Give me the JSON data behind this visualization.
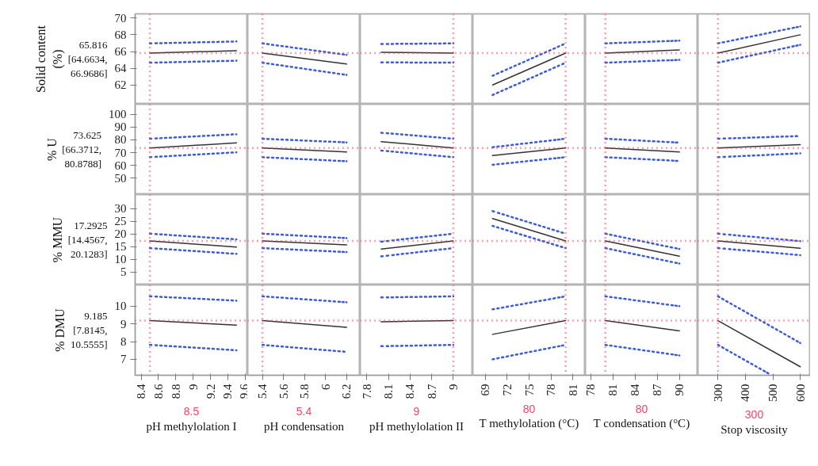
{
  "chart_data": [
    {
      "type": "line",
      "ylabel": "Solid content (%)",
      "annotations": [
        "65.816 [64.6634, 66.9686]"
      ],
      "xlim": [
        8.33,
        9.63
      ],
      "xticks": [
        8.4,
        8.6,
        8.8,
        9,
        9.2,
        9.4,
        9.6
      ],
      "ylim": [
        59.7,
        70.5
      ],
      "yticks": [
        62,
        64,
        66,
        68,
        70
      ],
      "tick_labels": "y",
      "ref_lines": [
        {
          "axis": "x",
          "value": 8.5,
          "color": "#ff4060",
          "line_style": "dotted"
        },
        {
          "axis": "y",
          "value": 65.816,
          "color": "#ff4060",
          "line_style": "dotted"
        }
      ],
      "series": [
        {
          "color": "#333333",
          "line_style": "solid",
          "x": [
            8.5,
            9.5
          ],
          "values": [
            65.816,
            66.1
          ]
        },
        {
          "color": "#3b5bdb",
          "line_style": "dotted",
          "x": [
            8.5,
            9.5
          ],
          "values": [
            66.9686,
            67.2
          ]
        },
        {
          "color": "#3b5bdb",
          "line_style": "dotted",
          "x": [
            8.5,
            9.5
          ],
          "values": [
            64.6634,
            64.9
          ]
        }
      ]
    },
    {
      "type": "line",
      "xlim": [
        5.26,
        6.33
      ],
      "xticks": [
        5.4,
        5.6,
        5.8,
        6,
        6.2
      ],
      "ylim": [
        59.7,
        70.5
      ],
      "yticks": [
        62,
        64,
        66,
        68,
        70
      ],
      "tick_labels": false,
      "ref_lines": [
        {
          "axis": "x",
          "value": 5.4,
          "color": "#ff4060",
          "line_style": "dotted"
        },
        {
          "axis": "y",
          "value": 65.816,
          "color": "#ff4060",
          "line_style": "dotted"
        }
      ],
      "series": [
        {
          "color": "#333333",
          "line_style": "solid",
          "x": [
            5.4,
            6.2
          ],
          "values": [
            65.816,
            64.5
          ]
        },
        {
          "color": "#3b5bdb",
          "line_style": "dotted",
          "x": [
            5.4,
            6.2
          ],
          "values": [
            66.9686,
            65.6
          ]
        },
        {
          "color": "#3b5bdb",
          "line_style": "dotted",
          "x": [
            5.4,
            6.2
          ],
          "values": [
            64.6634,
            63.2
          ]
        }
      ]
    },
    {
      "type": "line",
      "xlim": [
        7.71,
        9.27
      ],
      "xticks": [
        7.8,
        8.1,
        8.4,
        8.7,
        9
      ],
      "ylim": [
        59.7,
        70.5
      ],
      "yticks": [
        62,
        64,
        66,
        68,
        70
      ],
      "tick_labels": false,
      "ref_lines": [
        {
          "axis": "x",
          "value": 9,
          "color": "#ff4060",
          "line_style": "dotted"
        },
        {
          "axis": "y",
          "value": 65.816,
          "color": "#ff4060",
          "line_style": "dotted"
        }
      ],
      "series": [
        {
          "color": "#333333",
          "line_style": "solid",
          "x": [
            8,
            9
          ],
          "values": [
            65.9,
            65.816
          ]
        },
        {
          "color": "#3b5bdb",
          "line_style": "dotted",
          "x": [
            8,
            9
          ],
          "values": [
            66.9,
            66.9686
          ]
        },
        {
          "color": "#3b5bdb",
          "line_style": "dotted",
          "x": [
            8,
            9
          ],
          "values": [
            64.7,
            64.6634
          ]
        }
      ]
    },
    {
      "type": "line",
      "xlim": [
        67.3,
        82.7
      ],
      "xticks": [
        69,
        72,
        75,
        78,
        81
      ],
      "ylim": [
        59.7,
        70.5
      ],
      "yticks": [
        62,
        64,
        66,
        68,
        70
      ],
      "tick_labels": false,
      "ref_lines": [
        {
          "axis": "x",
          "value": 80,
          "color": "#ff4060",
          "line_style": "dotted"
        },
        {
          "axis": "y",
          "value": 65.816,
          "color": "#ff4060",
          "line_style": "dotted"
        }
      ],
      "series": [
        {
          "color": "#333333",
          "line_style": "solid",
          "x": [
            70,
            80
          ],
          "values": [
            62.0,
            65.816
          ]
        },
        {
          "color": "#3b5bdb",
          "line_style": "dotted",
          "x": [
            70,
            80
          ],
          "values": [
            63.1,
            66.9686
          ]
        },
        {
          "color": "#3b5bdb",
          "line_style": "dotted",
          "x": [
            70,
            80
          ],
          "values": [
            60.8,
            64.6634
          ]
        }
      ]
    },
    {
      "type": "line",
      "xlim": [
        77.3,
        92.5
      ],
      "xticks": [
        78,
        81,
        84,
        87,
        90
      ],
      "ylim": [
        59.7,
        70.5
      ],
      "yticks": [
        62,
        64,
        66,
        68,
        70
      ],
      "tick_labels": false,
      "ref_lines": [
        {
          "axis": "x",
          "value": 80,
          "color": "#ff4060",
          "line_style": "dotted"
        },
        {
          "axis": "y",
          "value": 65.816,
          "color": "#ff4060",
          "line_style": "dotted"
        }
      ],
      "series": [
        {
          "color": "#333333",
          "line_style": "solid",
          "x": [
            80,
            90
          ],
          "values": [
            65.816,
            66.2
          ]
        },
        {
          "color": "#3b5bdb",
          "line_style": "dotted",
          "x": [
            80,
            90
          ],
          "values": [
            66.9686,
            67.3
          ]
        },
        {
          "color": "#3b5bdb",
          "line_style": "dotted",
          "x": [
            80,
            90
          ],
          "values": [
            64.6634,
            65.0
          ]
        }
      ]
    },
    {
      "type": "line",
      "xlim": [
        227,
        637
      ],
      "xticks": [
        300,
        400,
        500,
        600
      ],
      "ylim": [
        59.7,
        70.5
      ],
      "yticks": [
        62,
        64,
        66,
        68,
        70
      ],
      "tick_labels": false,
      "ref_lines": [
        {
          "axis": "x",
          "value": 300,
          "color": "#ff4060",
          "line_style": "dotted"
        },
        {
          "axis": "y",
          "value": 65.816,
          "color": "#ff4060",
          "line_style": "dotted"
        }
      ],
      "series": [
        {
          "color": "#333333",
          "line_style": "solid",
          "x": [
            300,
            600
          ],
          "values": [
            65.816,
            68.0
          ]
        },
        {
          "color": "#3b5bdb",
          "line_style": "dotted",
          "x": [
            300,
            600
          ],
          "values": [
            66.9686,
            69.0
          ]
        },
        {
          "color": "#3b5bdb",
          "line_style": "dotted",
          "x": [
            300,
            600
          ],
          "values": [
            64.6634,
            66.8
          ]
        }
      ]
    },
    {
      "type": "line",
      "ylabel": "% U",
      "annotations": [
        "73.625 [66.3712, 80.8788]"
      ],
      "xlim": [
        8.33,
        9.63
      ],
      "xticks": [
        8.4,
        8.6,
        8.8,
        9,
        9.2,
        9.4,
        9.6
      ],
      "ylim": [
        37,
        108
      ],
      "yticks": [
        50,
        60,
        70,
        80,
        90,
        100
      ],
      "tick_labels": "y",
      "ref_lines": [
        {
          "axis": "x",
          "value": 8.5,
          "color": "#ff4060",
          "line_style": "dotted"
        },
        {
          "axis": "y",
          "value": 73.625,
          "color": "#ff4060",
          "line_style": "dotted"
        }
      ],
      "series": [
        {
          "color": "#333333",
          "line_style": "solid",
          "x": [
            8.5,
            9.5
          ],
          "values": [
            73.625,
            77.6
          ]
        },
        {
          "color": "#3b5bdb",
          "line_style": "dotted",
          "x": [
            8.5,
            9.5
          ],
          "values": [
            80.8788,
            84.4
          ]
        },
        {
          "color": "#3b5bdb",
          "line_style": "dotted",
          "x": [
            8.5,
            9.5
          ],
          "values": [
            66.3712,
            70.2
          ]
        }
      ]
    },
    {
      "type": "line",
      "xlim": [
        5.26,
        6.33
      ],
      "xticks": [
        5.4,
        5.6,
        5.8,
        6,
        6.2
      ],
      "ylim": [
        37,
        108
      ],
      "yticks": [
        50,
        60,
        70,
        80,
        90,
        100
      ],
      "tick_labels": false,
      "ref_lines": [
        {
          "axis": "x",
          "value": 5.4,
          "color": "#ff4060",
          "line_style": "dotted"
        },
        {
          "axis": "y",
          "value": 73.625,
          "color": "#ff4060",
          "line_style": "dotted"
        }
      ],
      "series": [
        {
          "color": "#333333",
          "line_style": "solid",
          "x": [
            5.4,
            6.2
          ],
          "values": [
            73.625,
            70.4
          ]
        },
        {
          "color": "#3b5bdb",
          "line_style": "dotted",
          "x": [
            5.4,
            6.2
          ],
          "values": [
            80.8788,
            78.0
          ]
        },
        {
          "color": "#3b5bdb",
          "line_style": "dotted",
          "x": [
            5.4,
            6.2
          ],
          "values": [
            66.3712,
            63.2
          ]
        }
      ]
    },
    {
      "type": "line",
      "xlim": [
        7.71,
        9.27
      ],
      "xticks": [
        7.8,
        8.1,
        8.4,
        8.7,
        9
      ],
      "ylim": [
        37,
        108
      ],
      "yticks": [
        50,
        60,
        70,
        80,
        90,
        100
      ],
      "tick_labels": false,
      "ref_lines": [
        {
          "axis": "x",
          "value": 9,
          "color": "#ff4060",
          "line_style": "dotted"
        },
        {
          "axis": "y",
          "value": 73.625,
          "color": "#ff4060",
          "line_style": "dotted"
        }
      ],
      "series": [
        {
          "color": "#333333",
          "line_style": "solid",
          "x": [
            8,
            9
          ],
          "values": [
            78.6,
            73.625
          ]
        },
        {
          "color": "#3b5bdb",
          "line_style": "dotted",
          "x": [
            8,
            9
          ],
          "values": [
            85.6,
            80.8788
          ]
        },
        {
          "color": "#3b5bdb",
          "line_style": "dotted",
          "x": [
            8,
            9
          ],
          "values": [
            71.6,
            66.3712
          ]
        }
      ]
    },
    {
      "type": "line",
      "xlim": [
        67.3,
        82.7
      ],
      "xticks": [
        69,
        72,
        75,
        78,
        81
      ],
      "ylim": [
        37,
        108
      ],
      "yticks": [
        50,
        60,
        70,
        80,
        90,
        100
      ],
      "tick_labels": false,
      "ref_lines": [
        {
          "axis": "x",
          "value": 80,
          "color": "#ff4060",
          "line_style": "dotted"
        },
        {
          "axis": "y",
          "value": 73.625,
          "color": "#ff4060",
          "line_style": "dotted"
        }
      ],
      "series": [
        {
          "color": "#333333",
          "line_style": "solid",
          "x": [
            70,
            80
          ],
          "values": [
            67.6,
            73.625
          ]
        },
        {
          "color": "#3b5bdb",
          "line_style": "dotted",
          "x": [
            70,
            80
          ],
          "values": [
            74.2,
            80.8788
          ]
        },
        {
          "color": "#3b5bdb",
          "line_style": "dotted",
          "x": [
            70,
            80
          ],
          "values": [
            60.4,
            66.3712
          ]
        }
      ]
    },
    {
      "type": "line",
      "xlim": [
        77.3,
        92.5
      ],
      "xticks": [
        78,
        81,
        84,
        87,
        90
      ],
      "ylim": [
        37,
        108
      ],
      "yticks": [
        50,
        60,
        70,
        80,
        90,
        100
      ],
      "tick_labels": false,
      "ref_lines": [
        {
          "axis": "x",
          "value": 80,
          "color": "#ff4060",
          "line_style": "dotted"
        },
        {
          "axis": "y",
          "value": 73.625,
          "color": "#ff4060",
          "line_style": "dotted"
        }
      ],
      "series": [
        {
          "color": "#333333",
          "line_style": "solid",
          "x": [
            80,
            90
          ],
          "values": [
            73.625,
            70.4
          ]
        },
        {
          "color": "#3b5bdb",
          "line_style": "dotted",
          "x": [
            80,
            90
          ],
          "values": [
            80.8788,
            77.8
          ]
        },
        {
          "color": "#3b5bdb",
          "line_style": "dotted",
          "x": [
            80,
            90
          ],
          "values": [
            66.3712,
            63.4
          ]
        }
      ]
    },
    {
      "type": "line",
      "xlim": [
        227,
        637
      ],
      "xticks": [
        300,
        400,
        500,
        600
      ],
      "ylim": [
        37,
        108
      ],
      "yticks": [
        50,
        60,
        70,
        80,
        90,
        100
      ],
      "tick_labels": false,
      "ref_lines": [
        {
          "axis": "x",
          "value": 300,
          "color": "#ff4060",
          "line_style": "dotted"
        },
        {
          "axis": "y",
          "value": 73.625,
          "color": "#ff4060",
          "line_style": "dotted"
        }
      ],
      "series": [
        {
          "color": "#333333",
          "line_style": "solid",
          "x": [
            300,
            600
          ],
          "values": [
            73.625,
            76.2
          ]
        },
        {
          "color": "#3b5bdb",
          "line_style": "dotted",
          "x": [
            300,
            600
          ],
          "values": [
            80.8788,
            83.0
          ]
        },
        {
          "color": "#3b5bdb",
          "line_style": "dotted",
          "x": [
            300,
            600
          ],
          "values": [
            66.3712,
            69.4
          ]
        }
      ]
    },
    {
      "type": "line",
      "ylabel": "% MMU",
      "annotations": [
        "17.2925 [14.4567, 20.1283]"
      ],
      "xlim": [
        8.33,
        9.63
      ],
      "xticks": [
        8.4,
        8.6,
        8.8,
        9,
        9.2,
        9.4,
        9.6
      ],
      "ylim": [
        0,
        35.5
      ],
      "yticks": [
        5,
        10,
        15,
        20,
        25,
        30
      ],
      "tick_labels": "y",
      "ref_lines": [
        {
          "axis": "x",
          "value": 8.5,
          "color": "#ff4060",
          "line_style": "dotted"
        },
        {
          "axis": "y",
          "value": 17.2925,
          "color": "#ff4060",
          "line_style": "dotted"
        }
      ],
      "series": [
        {
          "color": "#333333",
          "line_style": "solid",
          "x": [
            8.5,
            9.5
          ],
          "values": [
            17.2925,
            14.9
          ]
        },
        {
          "color": "#3b5bdb",
          "line_style": "dotted",
          "x": [
            8.5,
            9.5
          ],
          "values": [
            20.1283,
            17.9
          ]
        },
        {
          "color": "#3b5bdb",
          "line_style": "dotted",
          "x": [
            8.5,
            9.5
          ],
          "values": [
            14.4567,
            12.2
          ]
        }
      ]
    },
    {
      "type": "line",
      "xlim": [
        5.26,
        6.33
      ],
      "xticks": [
        5.4,
        5.6,
        5.8,
        6,
        6.2
      ],
      "ylim": [
        0,
        35.5
      ],
      "yticks": [
        5,
        10,
        15,
        20,
        25,
        30
      ],
      "tick_labels": false,
      "ref_lines": [
        {
          "axis": "x",
          "value": 5.4,
          "color": "#ff4060",
          "line_style": "dotted"
        },
        {
          "axis": "y",
          "value": 17.2925,
          "color": "#ff4060",
          "line_style": "dotted"
        }
      ],
      "series": [
        {
          "color": "#333333",
          "line_style": "solid",
          "x": [
            5.4,
            6.2
          ],
          "values": [
            17.2925,
            15.7
          ]
        },
        {
          "color": "#3b5bdb",
          "line_style": "dotted",
          "x": [
            5.4,
            6.2
          ],
          "values": [
            20.1283,
            18.4
          ]
        },
        {
          "color": "#3b5bdb",
          "line_style": "dotted",
          "x": [
            5.4,
            6.2
          ],
          "values": [
            14.4567,
            12.9
          ]
        }
      ]
    },
    {
      "type": "line",
      "xlim": [
        7.71,
        9.27
      ],
      "xticks": [
        7.8,
        8.1,
        8.4,
        8.7,
        9
      ],
      "ylim": [
        0,
        35.5
      ],
      "yticks": [
        5,
        10,
        15,
        20,
        25,
        30
      ],
      "tick_labels": false,
      "ref_lines": [
        {
          "axis": "x",
          "value": 9,
          "color": "#ff4060",
          "line_style": "dotted"
        },
        {
          "axis": "y",
          "value": 17.2925,
          "color": "#ff4060",
          "line_style": "dotted"
        }
      ],
      "series": [
        {
          "color": "#333333",
          "line_style": "solid",
          "x": [
            8,
            9
          ],
          "values": [
            14.1,
            17.2925
          ]
        },
        {
          "color": "#3b5bdb",
          "line_style": "dotted",
          "x": [
            8,
            9
          ],
          "values": [
            17.0,
            20.1283
          ]
        },
        {
          "color": "#3b5bdb",
          "line_style": "dotted",
          "x": [
            8,
            9
          ],
          "values": [
            11.2,
            14.4567
          ]
        }
      ]
    },
    {
      "type": "line",
      "xlim": [
        67.3,
        82.7
      ],
      "xticks": [
        69,
        72,
        75,
        78,
        81
      ],
      "ylim": [
        0,
        35.5
      ],
      "yticks": [
        5,
        10,
        15,
        20,
        25,
        30
      ],
      "tick_labels": false,
      "ref_lines": [
        {
          "axis": "x",
          "value": 80,
          "color": "#ff4060",
          "line_style": "dotted"
        },
        {
          "axis": "y",
          "value": 17.2925,
          "color": "#ff4060",
          "line_style": "dotted"
        }
      ],
      "series": [
        {
          "color": "#333333",
          "line_style": "solid",
          "x": [
            70,
            80
          ],
          "values": [
            26.1,
            17.2925
          ]
        },
        {
          "color": "#3b5bdb",
          "line_style": "dotted",
          "x": [
            70,
            80
          ],
          "values": [
            29.0,
            20.1283
          ]
        },
        {
          "color": "#3b5bdb",
          "line_style": "dotted",
          "x": [
            70,
            80
          ],
          "values": [
            23.2,
            14.4567
          ]
        }
      ]
    },
    {
      "type": "line",
      "xlim": [
        77.3,
        92.5
      ],
      "xticks": [
        78,
        81,
        84,
        87,
        90
      ],
      "ylim": [
        0,
        35.5
      ],
      "yticks": [
        5,
        10,
        15,
        20,
        25,
        30
      ],
      "tick_labels": false,
      "ref_lines": [
        {
          "axis": "x",
          "value": 80,
          "color": "#ff4060",
          "line_style": "dotted"
        },
        {
          "axis": "y",
          "value": 17.2925,
          "color": "#ff4060",
          "line_style": "dotted"
        }
      ],
      "series": [
        {
          "color": "#333333",
          "line_style": "solid",
          "x": [
            80,
            90
          ],
          "values": [
            17.2925,
            11.3
          ]
        },
        {
          "color": "#3b5bdb",
          "line_style": "dotted",
          "x": [
            80,
            90
          ],
          "values": [
            20.1283,
            14.1
          ]
        },
        {
          "color": "#3b5bdb",
          "line_style": "dotted",
          "x": [
            80,
            90
          ],
          "values": [
            14.4567,
            8.4
          ]
        }
      ]
    },
    {
      "type": "line",
      "xlim": [
        227,
        637
      ],
      "xticks": [
        300,
        400,
        500,
        600
      ],
      "ylim": [
        0,
        35.5
      ],
      "yticks": [
        5,
        10,
        15,
        20,
        25,
        30
      ],
      "tick_labels": false,
      "ref_lines": [
        {
          "axis": "x",
          "value": 300,
          "color": "#ff4060",
          "line_style": "dotted"
        },
        {
          "axis": "y",
          "value": 17.2925,
          "color": "#ff4060",
          "line_style": "dotted"
        }
      ],
      "series": [
        {
          "color": "#333333",
          "line_style": "solid",
          "x": [
            300,
            600
          ],
          "values": [
            17.2925,
            14.4
          ]
        },
        {
          "color": "#3b5bdb",
          "line_style": "dotted",
          "x": [
            300,
            600
          ],
          "values": [
            20.1283,
            17.2
          ]
        },
        {
          "color": "#3b5bdb",
          "line_style": "dotted",
          "x": [
            300,
            600
          ],
          "values": [
            14.4567,
            11.7
          ]
        }
      ]
    },
    {
      "type": "line",
      "ylabel": "% DMU",
      "xlabel": "pH methylolation I",
      "annotations": [
        "9.185 [7.8145, 10.5555]"
      ],
      "xlim": [
        8.33,
        9.63
      ],
      "xticks": [
        8.4,
        8.6,
        8.8,
        9,
        9.2,
        9.4,
        9.6
      ],
      "ylim": [
        6.1,
        11.2
      ],
      "yticks": [
        7,
        8,
        9,
        10
      ],
      "ref_lines": [
        {
          "axis": "x",
          "value": 8.5,
          "label": "8.5",
          "color": "#ff4060",
          "line_style": "dotted"
        },
        {
          "axis": "y",
          "value": 9.185,
          "color": "#ff4060",
          "line_style": "dotted"
        }
      ],
      "series": [
        {
          "color": "#333333",
          "line_style": "solid",
          "x": [
            8.5,
            9.5
          ],
          "values": [
            9.185,
            8.93
          ]
        },
        {
          "color": "#3b5bdb",
          "line_style": "dotted",
          "x": [
            8.5,
            9.5
          ],
          "values": [
            10.5555,
            10.31
          ]
        },
        {
          "color": "#3b5bdb",
          "line_style": "dotted",
          "x": [
            8.5,
            9.5
          ],
          "values": [
            7.8145,
            7.51
          ]
        }
      ]
    },
    {
      "type": "line",
      "xlabel": "pH condensation",
      "xlim": [
        5.26,
        6.33
      ],
      "xticks": [
        5.4,
        5.6,
        5.8,
        6,
        6.2
      ],
      "ylim": [
        6.1,
        11.2
      ],
      "yticks": [
        7,
        8,
        9,
        10
      ],
      "tick_labels": "x",
      "ref_lines": [
        {
          "axis": "x",
          "value": 5.4,
          "label": "5.4",
          "color": "#ff4060",
          "line_style": "dotted"
        },
        {
          "axis": "y",
          "value": 9.185,
          "color": "#ff4060",
          "line_style": "dotted"
        }
      ],
      "series": [
        {
          "color": "#333333",
          "line_style": "solid",
          "x": [
            5.4,
            6.2
          ],
          "values": [
            9.185,
            8.81
          ]
        },
        {
          "color": "#3b5bdb",
          "line_style": "dotted",
          "x": [
            5.4,
            6.2
          ],
          "values": [
            10.5555,
            10.22
          ]
        },
        {
          "color": "#3b5bdb",
          "line_style": "dotted",
          "x": [
            5.4,
            6.2
          ],
          "values": [
            7.8145,
            7.42
          ]
        }
      ]
    },
    {
      "type": "line",
      "xlabel": "pH methylolation II",
      "xlim": [
        7.71,
        9.27
      ],
      "xticks": [
        7.8,
        8.1,
        8.4,
        8.7,
        9
      ],
      "ylim": [
        6.1,
        11.2
      ],
      "yticks": [
        7,
        8,
        9,
        10
      ],
      "tick_labels": "x",
      "ref_lines": [
        {
          "axis": "x",
          "value": 9,
          "label": "9",
          "color": "#ff4060",
          "line_style": "dotted"
        },
        {
          "axis": "y",
          "value": 9.185,
          "color": "#ff4060",
          "line_style": "dotted"
        }
      ],
      "series": [
        {
          "color": "#333333",
          "line_style": "solid",
          "x": [
            8,
            9
          ],
          "values": [
            9.12,
            9.185
          ]
        },
        {
          "color": "#3b5bdb",
          "line_style": "dotted",
          "x": [
            8,
            9
          ],
          "values": [
            10.49,
            10.5555
          ]
        },
        {
          "color": "#3b5bdb",
          "line_style": "dotted",
          "x": [
            8,
            9
          ],
          "values": [
            7.74,
            7.8145
          ]
        }
      ]
    },
    {
      "type": "line",
      "xlabel": "T methylolation (°C)",
      "xlim": [
        67.3,
        82.7
      ],
      "xticks": [
        69,
        72,
        75,
        78,
        81
      ],
      "ylim": [
        6.1,
        11.2
      ],
      "yticks": [
        7,
        8,
        9,
        10
      ],
      "tick_labels": "x",
      "ref_lines": [
        {
          "axis": "x",
          "value": 80,
          "label": "80",
          "color": "#ff4060",
          "line_style": "dotted"
        },
        {
          "axis": "y",
          "value": 9.185,
          "color": "#ff4060",
          "line_style": "dotted"
        }
      ],
      "series": [
        {
          "color": "#333333",
          "line_style": "solid",
          "x": [
            70,
            80
          ],
          "values": [
            8.41,
            9.185
          ]
        },
        {
          "color": "#3b5bdb",
          "line_style": "dotted",
          "x": [
            70,
            80
          ],
          "values": [
            9.82,
            10.5555
          ]
        },
        {
          "color": "#3b5bdb",
          "line_style": "dotted",
          "x": [
            70,
            80
          ],
          "values": [
            7.0,
            7.8145
          ]
        }
      ]
    },
    {
      "type": "line",
      "xlabel": "T condensation (°C)",
      "xlim": [
        77.3,
        92.5
      ],
      "xticks": [
        78,
        81,
        84,
        87,
        90
      ],
      "ylim": [
        6.1,
        11.2
      ],
      "yticks": [
        7,
        8,
        9,
        10
      ],
      "tick_labels": "x",
      "ref_lines": [
        {
          "axis": "x",
          "value": 80,
          "label": "80",
          "color": "#ff4060",
          "line_style": "dotted"
        },
        {
          "axis": "y",
          "value": 9.185,
          "color": "#ff4060",
          "line_style": "dotted"
        }
      ],
      "series": [
        {
          "color": "#333333",
          "line_style": "solid",
          "x": [
            80,
            90
          ],
          "values": [
            9.185,
            8.61
          ]
        },
        {
          "color": "#3b5bdb",
          "line_style": "dotted",
          "x": [
            80,
            90
          ],
          "values": [
            10.5555,
            10.0
          ]
        },
        {
          "color": "#3b5bdb",
          "line_style": "dotted",
          "x": [
            80,
            90
          ],
          "values": [
            7.8145,
            7.22
          ]
        }
      ]
    },
    {
      "type": "line",
      "xlabel": "Stop viscosity",
      "xlim": [
        227,
        637
      ],
      "xticks": [
        300,
        400,
        500,
        600
      ],
      "ylim": [
        6.1,
        11.2
      ],
      "yticks": [
        7,
        8,
        9,
        10
      ],
      "tick_labels": "x",
      "ref_lines": [
        {
          "axis": "x",
          "value": 300,
          "label": "300",
          "color": "#ff4060",
          "line_style": "dotted"
        },
        {
          "axis": "y",
          "value": 9.185,
          "color": "#ff4060",
          "line_style": "dotted"
        }
      ],
      "series": [
        {
          "color": "#333333",
          "line_style": "solid",
          "x": [
            300,
            600
          ],
          "values": [
            9.185,
            6.58
          ]
        },
        {
          "color": "#3b5bdb",
          "line_style": "dotted",
          "x": [
            300,
            600
          ],
          "values": [
            10.5555,
            7.92
          ]
        },
        {
          "color": "#3b5bdb",
          "line_style": "dotted",
          "x": [
            300,
            490
          ],
          "values": [
            7.8145,
            6.15
          ]
        }
      ]
    }
  ]
}
